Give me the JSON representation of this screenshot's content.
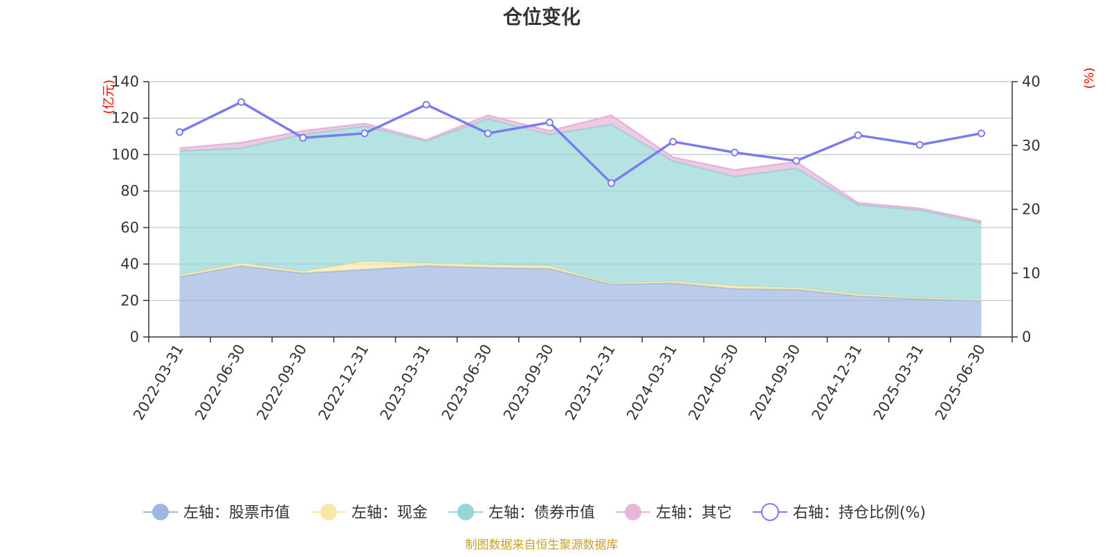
{
  "chart_data": {
    "type": "area",
    "title": "仓位变化",
    "left_axis": {
      "label": "(亿元)",
      "ylim": [
        0,
        140
      ],
      "ticks": [
        0,
        20,
        40,
        60,
        80,
        100,
        120,
        140
      ]
    },
    "right_axis": {
      "label": "(%)",
      "ylim": [
        0,
        40
      ],
      "ticks": [
        0,
        10,
        20,
        30,
        40
      ]
    },
    "x": [
      "2022-03-31",
      "2022-06-30",
      "2022-09-30",
      "2022-12-31",
      "2023-03-31",
      "2023-06-30",
      "2023-09-30",
      "2023-12-31",
      "2024-03-31",
      "2024-06-30",
      "2024-09-30",
      "2024-12-31",
      "2025-03-31",
      "2025-06-30"
    ],
    "stacked": true,
    "series": [
      {
        "name": "左轴：股票市值",
        "axis": "left",
        "style": "area",
        "color": "#9db7e0",
        "values": [
          33,
          39,
          35,
          37,
          39,
          38,
          37.5,
          29,
          29.5,
          26.5,
          26,
          22.5,
          21,
          20
        ]
      },
      {
        "name": "左轴：现金",
        "axis": "left",
        "style": "area",
        "color": "#fae7a5",
        "values": [
          1,
          1.5,
          1,
          4.5,
          1.5,
          1.5,
          1.5,
          0.5,
          1,
          1.5,
          1,
          1,
          0.5,
          0.5
        ]
      },
      {
        "name": "左轴：债券市值",
        "axis": "left",
        "style": "area",
        "color": "#96d6d6",
        "values": [
          68,
          63,
          75,
          74,
          67,
          80,
          72,
          87,
          66,
          60,
          65.5,
          49,
          48,
          42
        ]
      },
      {
        "name": "左轴：其它",
        "axis": "left",
        "style": "area",
        "color": "#e6b5da",
        "values": [
          1.5,
          3,
          2,
          1.5,
          0.5,
          2,
          2,
          5,
          2,
          3.5,
          3.5,
          1,
          1,
          1
        ]
      },
      {
        "name": "右轴：持仓比例(%)",
        "axis": "right",
        "style": "line",
        "color": "#7b7bf0",
        "values": [
          32.1,
          36.8,
          31.2,
          31.9,
          36.4,
          31.9,
          33.6,
          24.1,
          30.6,
          28.9,
          27.6,
          31.6,
          30.1,
          31.9
        ]
      }
    ],
    "legend_position": "bottom",
    "grid": true
  },
  "footer": {
    "source": "制图数据来自恒生聚源数据库"
  },
  "colors": {
    "axis_label_red": "#ff0000",
    "source_text": "#c8a02e",
    "grid": "#cccccc",
    "axis_line": "#333333"
  }
}
